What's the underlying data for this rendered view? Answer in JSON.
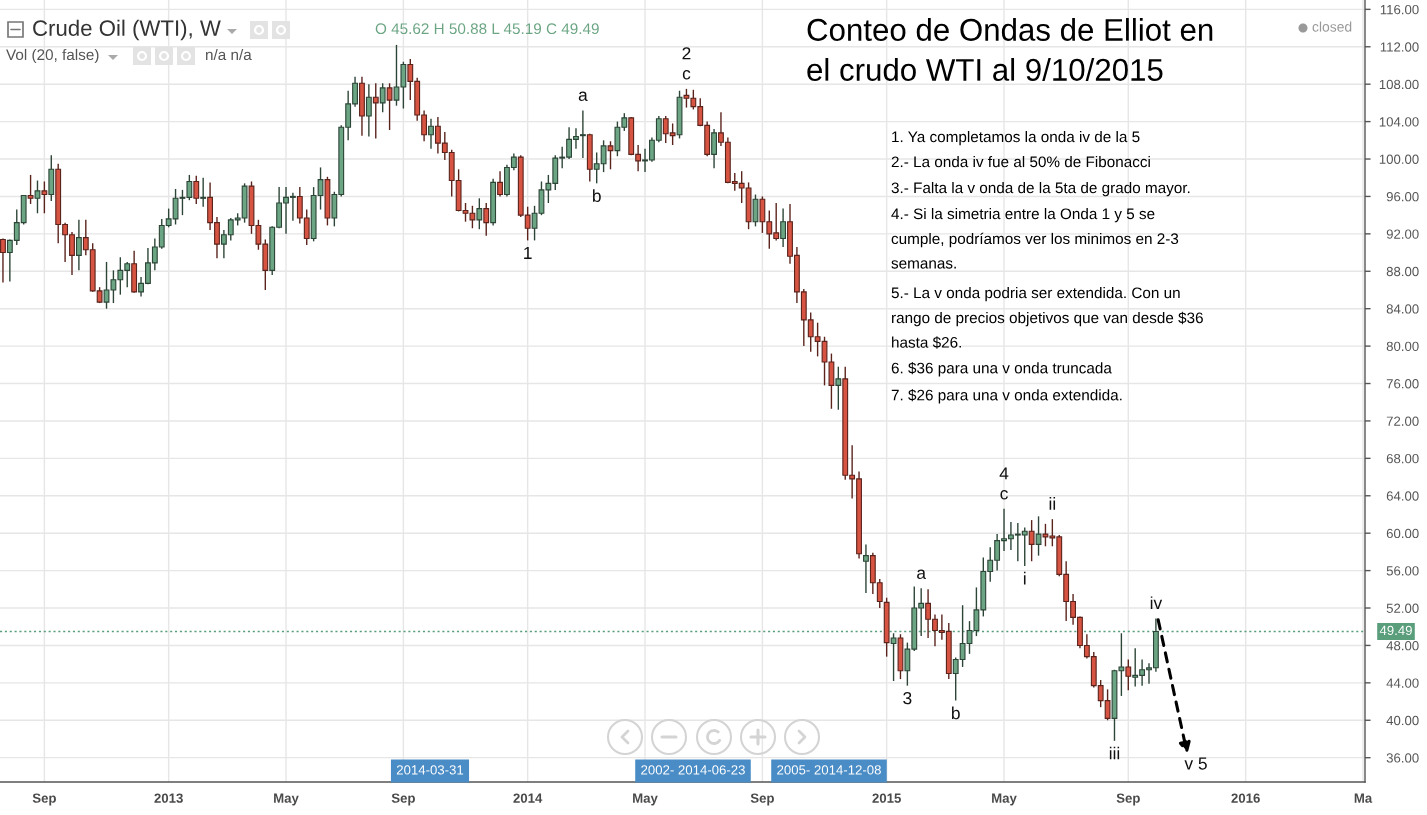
{
  "chart_data": {
    "type": "candlestick",
    "title": "Conteo de Ondas de Elliot en\nel crudo WTI al 9/10/2015",
    "subtitle": "Crude Oil (WTI), W",
    "x": [
      "2012-07-23",
      "2012-07-30",
      "2012-08-06",
      "2012-08-13",
      "2012-08-20",
      "2012-08-27",
      "2012-09-03",
      "2012-09-10",
      "2012-09-17",
      "2012-09-24",
      "2012-10-01",
      "2012-10-08",
      "2012-10-15",
      "2012-10-22",
      "2012-10-29",
      "2012-11-05",
      "2012-11-12",
      "2012-11-19",
      "2012-11-26",
      "2012-12-03",
      "2012-12-10",
      "2012-12-17",
      "2012-12-24",
      "2012-12-31",
      "2013-01-07",
      "2013-01-14",
      "2013-01-21",
      "2013-01-28",
      "2013-02-04",
      "2013-02-11",
      "2013-02-18",
      "2013-02-25",
      "2013-03-04",
      "2013-03-11",
      "2013-03-18",
      "2013-03-25",
      "2013-04-01",
      "2013-04-08",
      "2013-04-15",
      "2013-04-22",
      "2013-04-29",
      "2013-05-06",
      "2013-05-13",
      "2013-05-20",
      "2013-05-27",
      "2013-06-03",
      "2013-06-10",
      "2013-06-17",
      "2013-06-24",
      "2013-07-01",
      "2013-07-08",
      "2013-07-15",
      "2013-07-22",
      "2013-07-29",
      "2013-08-05",
      "2013-08-12",
      "2013-08-19",
      "2013-08-26",
      "2013-09-02",
      "2013-09-09",
      "2013-09-16",
      "2013-09-23",
      "2013-09-30",
      "2013-10-07",
      "2013-10-14",
      "2013-10-21",
      "2013-10-28",
      "2013-11-04",
      "2013-11-11",
      "2013-11-18",
      "2013-11-25",
      "2013-12-02",
      "2013-12-09",
      "2013-12-16",
      "2013-12-23",
      "2013-12-30",
      "2014-01-06",
      "2014-01-13",
      "2014-01-20",
      "2014-01-27",
      "2014-02-03",
      "2014-02-10",
      "2014-02-17",
      "2014-02-24",
      "2014-03-03",
      "2014-03-10",
      "2014-03-17",
      "2014-03-24",
      "2014-03-31",
      "2014-04-07",
      "2014-04-14",
      "2014-04-21",
      "2014-04-28",
      "2014-05-05",
      "2014-05-12",
      "2014-05-19",
      "2014-05-26",
      "2014-06-02",
      "2014-06-09",
      "2014-06-16",
      "2014-06-23",
      "2014-06-30",
      "2014-07-07",
      "2014-07-14",
      "2014-07-21",
      "2014-07-28",
      "2014-08-04",
      "2014-08-11",
      "2014-08-18",
      "2014-08-25",
      "2014-09-01",
      "2014-09-08",
      "2014-09-15",
      "2014-09-22",
      "2014-09-29",
      "2014-10-06",
      "2014-10-13",
      "2014-10-20",
      "2014-10-27",
      "2014-11-03",
      "2014-11-10",
      "2014-11-17",
      "2014-11-24",
      "2014-12-01",
      "2014-12-08",
      "2014-12-15",
      "2014-12-22",
      "2014-12-29",
      "2015-01-05",
      "2015-01-12",
      "2015-01-19",
      "2015-01-26",
      "2015-02-02",
      "2015-02-09",
      "2015-02-16",
      "2015-02-23",
      "2015-03-02",
      "2015-03-09",
      "2015-03-16",
      "2015-03-23",
      "2015-03-30",
      "2015-04-06",
      "2015-04-13",
      "2015-04-20",
      "2015-04-27",
      "2015-05-04",
      "2015-05-11",
      "2015-05-18",
      "2015-05-25",
      "2015-06-01",
      "2015-06-08",
      "2015-06-15",
      "2015-06-22",
      "2015-06-29",
      "2015-07-06",
      "2015-07-13",
      "2015-07-20",
      "2015-07-27",
      "2015-08-03",
      "2015-08-10",
      "2015-08-17",
      "2015-08-24",
      "2015-08-31",
      "2015-09-07",
      "2015-09-14",
      "2015-09-21",
      "2015-09-28",
      "2015-10-05"
    ],
    "ohlc": [
      [
        91.4,
        91.5,
        86.8,
        90.0
      ],
      [
        90.0,
        91.4,
        86.9,
        91.3
      ],
      [
        91.3,
        94.6,
        90.8,
        93.2
      ],
      [
        93.2,
        96.1,
        93.0,
        96.1
      ],
      [
        96.1,
        98.3,
        95.2,
        95.8
      ],
      [
        95.8,
        97.7,
        94.2,
        96.6
      ],
      [
        96.6,
        97.6,
        94.2,
        96.2
      ],
      [
        96.2,
        100.4,
        95.5,
        98.9
      ],
      [
        98.9,
        99.5,
        91.0,
        93.0
      ],
      [
        93.0,
        93.2,
        89.0,
        91.9
      ],
      [
        91.9,
        92.2,
        87.6,
        89.7
      ],
      [
        89.7,
        93.5,
        88.1,
        91.6
      ],
      [
        91.6,
        93.5,
        89.7,
        90.3
      ],
      [
        90.3,
        91.0,
        85.8,
        85.9
      ],
      [
        85.9,
        86.3,
        84.6,
        84.7
      ],
      [
        84.7,
        89.0,
        84.0,
        86.0
      ],
      [
        86.0,
        88.1,
        84.6,
        87.1
      ],
      [
        87.1,
        89.5,
        85.5,
        88.1
      ],
      [
        88.1,
        89.0,
        86.3,
        88.8
      ],
      [
        88.8,
        90.2,
        85.7,
        85.8
      ],
      [
        85.8,
        87.4,
        85.3,
        86.7
      ],
      [
        86.7,
        90.5,
        86.6,
        88.9
      ],
      [
        88.9,
        91.5,
        88.1,
        90.6
      ],
      [
        90.6,
        93.6,
        90.4,
        92.9
      ],
      [
        92.9,
        94.7,
        92.7,
        93.6
      ],
      [
        93.6,
        96.8,
        93.0,
        95.8
      ],
      [
        95.8,
        96.7,
        94.0,
        95.9
      ],
      [
        95.9,
        98.3,
        95.6,
        97.6
      ],
      [
        97.6,
        98.2,
        95.2,
        95.8
      ],
      [
        95.8,
        98.0,
        94.9,
        95.9
      ],
      [
        95.9,
        97.5,
        92.4,
        93.2
      ],
      [
        93.2,
        93.8,
        89.4,
        90.9
      ],
      [
        90.9,
        92.4,
        89.4,
        91.9
      ],
      [
        91.9,
        93.7,
        91.3,
        93.5
      ],
      [
        93.5,
        94.2,
        92.9,
        93.7
      ],
      [
        93.7,
        97.4,
        93.2,
        97.1
      ],
      [
        97.1,
        97.6,
        92.0,
        92.9
      ],
      [
        92.9,
        93.5,
        90.3,
        90.9
      ],
      [
        90.9,
        91.4,
        86.0,
        88.1
      ],
      [
        88.1,
        92.8,
        87.6,
        92.7
      ],
      [
        92.7,
        97.0,
        92.6,
        95.3
      ],
      [
        95.3,
        97.0,
        92.0,
        95.9
      ],
      [
        95.9,
        96.4,
        93.4,
        96.0
      ],
      [
        96.0,
        97.0,
        93.1,
        93.7
      ],
      [
        93.7,
        94.6,
        90.8,
        91.5
      ],
      [
        91.5,
        97.0,
        91.2,
        96.1
      ],
      [
        96.1,
        99.1,
        94.6,
        97.8
      ],
      [
        97.8,
        98.1,
        92.9,
        93.7
      ],
      [
        93.7,
        96.5,
        92.8,
        96.2
      ],
      [
        96.2,
        103.6,
        96.0,
        103.4
      ],
      [
        103.4,
        107.3,
        102.0,
        105.9
      ],
      [
        105.9,
        108.8,
        105.6,
        108.1
      ],
      [
        108.1,
        108.8,
        102.5,
        104.6
      ],
      [
        104.6,
        108.0,
        102.4,
        106.6
      ],
      [
        106.6,
        108.1,
        102.2,
        106.0
      ],
      [
        106.0,
        108.1,
        105.0,
        107.6
      ],
      [
        107.6,
        108.1,
        103.1,
        106.3
      ],
      [
        106.3,
        112.2,
        105.7,
        107.7
      ],
      [
        107.7,
        110.4,
        105.4,
        110.1
      ],
      [
        110.1,
        110.7,
        106.3,
        108.3
      ],
      [
        108.3,
        108.7,
        104.1,
        104.7
      ],
      [
        104.7,
        105.2,
        101.9,
        102.6
      ],
      [
        102.6,
        104.3,
        101.1,
        103.5
      ],
      [
        103.5,
        104.5,
        100.6,
        101.7
      ],
      [
        101.7,
        102.9,
        99.9,
        100.7
      ],
      [
        100.7,
        101.0,
        96.0,
        97.7
      ],
      [
        97.7,
        98.9,
        94.4,
        94.5
      ],
      [
        94.5,
        95.3,
        93.3,
        94.2
      ],
      [
        94.2,
        95.0,
        92.6,
        93.5
      ],
      [
        93.5,
        95.8,
        92.5,
        94.7
      ],
      [
        94.7,
        95.3,
        91.8,
        93.2
      ],
      [
        93.2,
        97.9,
        92.9,
        97.5
      ],
      [
        97.5,
        98.7,
        96.0,
        96.2
      ],
      [
        96.2,
        99.4,
        96.0,
        99.1
      ],
      [
        99.1,
        100.6,
        98.8,
        100.2
      ],
      [
        100.2,
        100.4,
        93.8,
        94.0
      ],
      [
        94.0,
        94.9,
        91.3,
        92.6
      ],
      [
        92.6,
        95.0,
        91.3,
        94.2
      ],
      [
        94.2,
        97.6,
        94.0,
        96.7
      ],
      [
        96.7,
        98.3,
        95.3,
        97.4
      ],
      [
        97.4,
        100.4,
        96.7,
        100.1
      ],
      [
        100.1,
        101.3,
        99.0,
        100.2
      ],
      [
        100.2,
        103.4,
        100.0,
        102.1
      ],
      [
        102.1,
        103.3,
        101.1,
        102.4
      ],
      [
        102.5,
        105.2,
        100.1,
        102.6
      ],
      [
        102.6,
        102.7,
        97.6,
        98.9
      ],
      [
        98.9,
        100.7,
        97.4,
        99.5
      ],
      [
        99.5,
        102.0,
        98.6,
        101.4
      ],
      [
        101.4,
        101.9,
        98.9,
        100.9
      ],
      [
        100.9,
        104.0,
        100.3,
        103.4
      ],
      [
        103.4,
        104.9,
        103.0,
        104.4
      ],
      [
        104.4,
        104.5,
        100.4,
        100.5
      ],
      [
        100.5,
        101.5,
        98.7,
        99.8
      ],
      [
        99.8,
        101.1,
        98.6,
        99.9
      ],
      [
        99.9,
        102.3,
        99.7,
        102.0
      ],
      [
        102.0,
        104.6,
        101.8,
        104.3
      ],
      [
        104.3,
        104.6,
        101.7,
        102.7
      ],
      [
        102.8,
        103.8,
        101.5,
        102.5
      ],
      [
        102.6,
        107.3,
        102.2,
        106.6
      ],
      [
        106.8,
        107.5,
        105.5,
        106.5
      ],
      [
        106.5,
        107.4,
        105.3,
        105.6
      ],
      [
        105.6,
        106.5,
        103.5,
        103.6
      ],
      [
        103.6,
        104.0,
        100.3,
        100.5
      ],
      [
        100.5,
        103.2,
        99.0,
        102.8
      ],
      [
        102.8,
        105.0,
        101.4,
        101.8
      ],
      [
        101.8,
        102.3,
        97.4,
        97.5
      ],
      [
        97.6,
        98.5,
        96.6,
        97.4
      ],
      [
        97.4,
        98.7,
        95.3,
        96.9
      ],
      [
        96.9,
        97.5,
        92.5,
        93.3
      ],
      [
        93.3,
        96.2,
        92.8,
        95.7
      ],
      [
        95.7,
        96.0,
        92.1,
        93.3
      ],
      [
        93.3,
        94.5,
        90.4,
        92.0
      ],
      [
        92.1,
        95.3,
        91.3,
        91.5
      ],
      [
        91.5,
        94.7,
        90.6,
        93.3
      ],
      [
        93.3,
        95.2,
        88.8,
        89.6
      ],
      [
        89.7,
        90.6,
        84.6,
        85.8
      ],
      [
        85.8,
        86.1,
        80.0,
        82.8
      ],
      [
        82.8,
        83.6,
        79.4,
        81.0
      ],
      [
        81.0,
        82.5,
        78.9,
        80.5
      ],
      [
        80.5,
        81.0,
        75.8,
        78.3
      ],
      [
        78.3,
        79.2,
        73.3,
        75.8
      ],
      [
        75.8,
        77.8,
        73.2,
        76.5
      ],
      [
        76.5,
        77.8,
        65.7,
        66.2
      ],
      [
        66.2,
        69.4,
        63.7,
        65.8
      ],
      [
        65.8,
        66.6,
        57.3,
        57.8
      ],
      [
        57.0,
        58.8,
        53.6,
        57.6
      ],
      [
        57.6,
        57.9,
        53.5,
        54.7
      ],
      [
        54.7,
        55.1,
        52.0,
        52.7
      ],
      [
        52.6,
        53.1,
        46.8,
        48.3
      ],
      [
        48.2,
        49.3,
        44.2,
        48.8
      ],
      [
        48.8,
        49.2,
        44.4,
        45.3
      ],
      [
        45.3,
        48.3,
        43.7,
        47.6
      ],
      [
        47.6,
        54.3,
        47.4,
        52.0
      ],
      [
        52.0,
        54.1,
        49.0,
        52.5
      ],
      [
        52.5,
        54.0,
        48.8,
        50.8
      ],
      [
        50.8,
        51.3,
        47.9,
        49.6
      ],
      [
        49.6,
        51.3,
        48.6,
        49.4
      ],
      [
        49.5,
        50.4,
        44.4,
        45.0
      ],
      [
        45.0,
        46.7,
        42.1,
        46.5
      ],
      [
        46.5,
        52.3,
        45.7,
        48.2
      ],
      [
        48.2,
        50.6,
        47.1,
        49.6
      ],
      [
        49.6,
        54.2,
        49.0,
        51.8
      ],
      [
        51.8,
        57.4,
        51.1,
        55.9
      ],
      [
        55.9,
        58.5,
        54.8,
        57.1
      ],
      [
        57.1,
        59.9,
        56.0,
        59.2
      ],
      [
        59.2,
        62.6,
        58.1,
        59.4
      ],
      [
        59.4,
        61.2,
        58.2,
        59.8
      ],
      [
        59.8,
        61.1,
        57.0,
        59.9
      ],
      [
        59.8,
        60.6,
        56.5,
        60.2
      ],
      [
        60.2,
        61.4,
        57.0,
        58.8
      ],
      [
        58.8,
        61.8,
        57.6,
        59.9
      ],
      [
        59.9,
        61.0,
        58.6,
        59.6
      ],
      [
        59.7,
        61.5,
        58.6,
        59.5
      ],
      [
        59.6,
        59.8,
        55.4,
        55.6
      ],
      [
        55.6,
        57.0,
        50.6,
        52.7
      ],
      [
        52.7,
        53.5,
        50.2,
        51.0
      ],
      [
        51.0,
        51.1,
        47.7,
        48.0
      ],
      [
        48.0,
        49.2,
        46.6,
        46.8
      ],
      [
        46.8,
        47.3,
        43.5,
        43.7
      ],
      [
        43.7,
        44.3,
        41.4,
        42.1
      ],
      [
        42.1,
        43.3,
        40.0,
        40.2
      ],
      [
        40.2,
        45.4,
        37.8,
        45.3
      ],
      [
        45.3,
        49.3,
        42.6,
        45.7
      ],
      [
        45.7,
        46.5,
        43.2,
        44.7
      ],
      [
        44.6,
        47.7,
        43.6,
        44.8
      ],
      [
        44.8,
        46.5,
        43.7,
        45.4
      ],
      [
        45.4,
        46.1,
        43.9,
        45.6
      ],
      [
        45.62,
        50.88,
        45.19,
        49.49
      ]
    ],
    "colors": [
      "#d75442",
      "#6ba583",
      "#6ba583",
      "#6ba583",
      "#d75442",
      "#6ba583",
      "#d75442",
      "#6ba583",
      "#d75442",
      "#d75442",
      "#d75442",
      "#6ba583",
      "#d75442",
      "#d75442",
      "#d75442",
      "#6ba583",
      "#6ba583",
      "#6ba583",
      "#6ba583",
      "#d75442",
      "#6ba583",
      "#6ba583",
      "#6ba583",
      "#6ba583",
      "#6ba583",
      "#6ba583",
      "#6ba583",
      "#6ba583",
      "#d75442",
      "#6ba583",
      "#d75442",
      "#d75442",
      "#6ba583",
      "#6ba583",
      "#6ba583",
      "#6ba583",
      "#d75442",
      "#d75442",
      "#d75442",
      "#6ba583",
      "#6ba583",
      "#6ba583",
      "#6ba583",
      "#d75442",
      "#d75442",
      "#6ba583",
      "#6ba583",
      "#d75442",
      "#6ba583",
      "#6ba583",
      "#6ba583",
      "#6ba583",
      "#d75442",
      "#6ba583",
      "#d75442",
      "#6ba583",
      "#d75442",
      "#6ba583",
      "#6ba583",
      "#d75442",
      "#d75442",
      "#d75442",
      "#6ba583",
      "#d75442",
      "#d75442",
      "#d75442",
      "#d75442",
      "#d75442",
      "#d75442",
      "#6ba583",
      "#d75442",
      "#6ba583",
      "#d75442",
      "#6ba583",
      "#6ba583",
      "#d75442",
      "#d75442",
      "#6ba583",
      "#6ba583",
      "#6ba583",
      "#6ba583",
      "#6ba583",
      "#6ba583",
      "#6ba583",
      "#6ba583",
      "#d75442",
      "#6ba583",
      "#6ba583",
      "#d75442",
      "#6ba583",
      "#6ba583",
      "#d75442",
      "#d75442",
      "#6ba583",
      "#6ba583",
      "#6ba583",
      "#d75442",
      "#d75442",
      "#6ba583",
      "#d75442",
      "#d75442",
      "#d75442",
      "#d75442",
      "#6ba583",
      "#d75442",
      "#d75442",
      "#d75442",
      "#d75442",
      "#d75442",
      "#6ba583",
      "#d75442",
      "#d75442",
      "#d75442",
      "#6ba583",
      "#d75442",
      "#d75442",
      "#d75442",
      "#d75442",
      "#d75442",
      "#d75442",
      "#d75442",
      "#6ba583",
      "#d75442",
      "#d75442",
      "#d75442",
      "#6ba583",
      "#d75442",
      "#d75442",
      "#d75442",
      "#6ba583",
      "#d75442",
      "#6ba583",
      "#6ba583",
      "#6ba583",
      "#d75442",
      "#d75442",
      "#d75442",
      "#d75442",
      "#6ba583",
      "#6ba583",
      "#6ba583",
      "#6ba583",
      "#6ba583",
      "#6ba583",
      "#6ba583",
      "#6ba583",
      "#6ba583",
      "#6ba583",
      "#6ba583",
      "#d75442",
      "#6ba583",
      "#d75442",
      "#d75442",
      "#d75442",
      "#d75442",
      "#d75442",
      "#d75442",
      "#d75442",
      "#d75442",
      "#d75442",
      "#d75442",
      "#6ba583",
      "#6ba583",
      "#d75442",
      "#6ba583",
      "#6ba583",
      "#6ba583",
      "#6ba583"
    ],
    "xlim": [
      "2012-07-20",
      "2016-05-04"
    ],
    "xticks": [
      {
        "value": "2012-09-03",
        "label": "Sep"
      },
      {
        "value": "2013-01-07",
        "label": "2013"
      },
      {
        "value": "2013-05-06",
        "label": "May"
      },
      {
        "value": "2013-09-02",
        "label": "Sep"
      },
      {
        "value": "2014-01-06",
        "label": "2014"
      },
      {
        "value": "2014-05-05",
        "label": "May"
      },
      {
        "value": "2014-09-01",
        "label": "Sep"
      },
      {
        "value": "2015-01-05",
        "label": "2015"
      },
      {
        "value": "2015-05-04",
        "label": "May"
      },
      {
        "value": "2015-09-07",
        "label": "Sep"
      },
      {
        "value": "2016-01-04",
        "label": "2016"
      },
      {
        "value": "2016-05-02",
        "label": "Ma"
      }
    ],
    "ylim": [
      33.4,
      117.0
    ],
    "yticks": [
      {
        "value": 36,
        "label": "36.00"
      },
      {
        "value": 40,
        "label": "40.00"
      },
      {
        "value": 44,
        "label": "44.00"
      },
      {
        "value": 48,
        "label": "48.00"
      },
      {
        "value": 52,
        "label": "52.00"
      },
      {
        "value": 56,
        "label": "56.00"
      },
      {
        "value": 60,
        "label": "60.00"
      },
      {
        "value": 64,
        "label": "64.00"
      },
      {
        "value": 68,
        "label": "68.00"
      },
      {
        "value": 72,
        "label": "72.00"
      },
      {
        "value": 76,
        "label": "76.00"
      },
      {
        "value": 80,
        "label": "80.00"
      },
      {
        "value": 84,
        "label": "84.00"
      },
      {
        "value": 88,
        "label": "88.00"
      },
      {
        "value": 92,
        "label": "92.00"
      },
      {
        "value": 96,
        "label": "96.00"
      },
      {
        "value": 100,
        "label": "100.00"
      },
      {
        "value": 104,
        "label": "104.00"
      },
      {
        "value": 108,
        "label": "108.00"
      },
      {
        "value": 112,
        "label": "112.00"
      },
      {
        "value": 116,
        "label": "116.00"
      }
    ],
    "grid": true,
    "ref_lines": [
      {
        "axis": "y",
        "value": 49.49,
        "label": "49.49",
        "color": "#5a9e7c",
        "line_style": "dotted"
      }
    ],
    "annotations": [
      "O 45.62 H 50.88 L 45.19 C 49.49",
      "Vol (20, false)",
      "n/a n/a",
      "closed",
      "1. Ya completamos la onda iv de la 5",
      "2.- La onda iv fue al 50% de Fibonacci",
      "3.- Falta la v onda de la 5ta de grado mayor.",
      "4.- Si la simetria entre la Onda 1 y 5 se\ncumple, podríamos ver los minimos en 2-3\nsemanas.",
      "5.- La v onda podria ser extendida. Con un\nrango de precios objetivos que van desde $36\nhasta $26.",
      "6. $36 para una v onda truncada",
      "7. $26 para una v onda extendida.",
      "2014-03-31",
      "2002- 2014-06-23",
      "2005- 2014-12-08",
      "v 5",
      {
        "text": "1",
        "x": "2014-01-06",
        "y": 91.3
      },
      {
        "text": "a",
        "x": "2014-03-03",
        "y": 105.2
      },
      {
        "text": "b",
        "x": "2014-03-17",
        "y": 97.4
      },
      {
        "text": "2",
        "x": "2014-06-16",
        "y": 107.5
      },
      {
        "text": "c",
        "x": "2014-06-16",
        "y": 107.5
      },
      {
        "text": "3",
        "x": "2015-01-26",
        "y": 43.7
      },
      {
        "text": "a",
        "x": "2015-02-09",
        "y": 54.1
      },
      {
        "text": "b",
        "x": "2015-03-16",
        "y": 42.1
      },
      {
        "text": "4",
        "x": "2015-05-04",
        "y": 62.6
      },
      {
        "text": "c",
        "x": "2015-05-04",
        "y": 62.6
      },
      {
        "text": "i",
        "x": "2015-05-25",
        "y": 56.5
      },
      {
        "text": "ii",
        "x": "2015-06-22",
        "y": 61.5
      },
      {
        "text": "iii",
        "x": "2015-08-24",
        "y": 37.8
      },
      {
        "text": "iv",
        "x": "2015-10-05",
        "y": 50.88
      }
    ]
  }
}
